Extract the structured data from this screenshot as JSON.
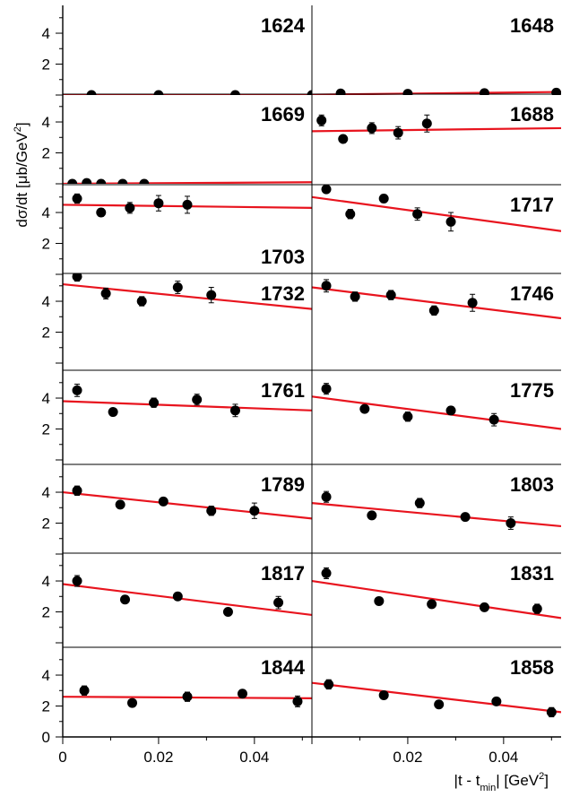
{
  "chart_data": {
    "type": "scatter",
    "layout": "grid 8 rows x 2 columns of small-multiple panels with shared axes",
    "xlabel_parts": {
      "pre": "|t - t",
      "sub": "min",
      "post": "| [GeV",
      "sup": "2",
      "end": "]"
    },
    "ylabel_parts": {
      "pre": "dσ/dt [μb/GeV",
      "sup": "2",
      "end": "]"
    },
    "xlim": [
      0,
      0.052
    ],
    "ylim": [
      0,
      5.8
    ],
    "x_ticks": [
      0,
      0.02,
      0.04
    ],
    "x_tick_labels": [
      "0",
      "0.02",
      "0.04"
    ],
    "y_ticks": [
      0,
      2,
      4
    ],
    "y_tick_labels_bottom": [
      "0",
      "2",
      "4"
    ],
    "y_tick_labels_other": [
      "",
      "2",
      "4"
    ],
    "colors": {
      "fit": "#e8141e",
      "points": "#000000"
    },
    "panels": [
      {
        "label": "1624",
        "points": [
          [
            0.006,
            0.0
          ],
          [
            0.02,
            0.0
          ],
          [
            0.036,
            0.0
          ],
          [
            0.052,
            0.0
          ]
        ],
        "errors": [
          0,
          0,
          0,
          0
        ],
        "fit": [
          0.0,
          0.0
        ]
      },
      {
        "label": "1648",
        "points": [
          [
            0.006,
            0.1
          ],
          [
            0.02,
            0.08
          ],
          [
            0.036,
            0.12
          ],
          [
            0.051,
            0.15
          ]
        ],
        "errors": [
          0,
          0,
          0,
          0
        ],
        "fit": [
          0.02,
          0.2
        ]
      },
      {
        "label": "1669",
        "points": [
          [
            0.002,
            0.0
          ],
          [
            0.005,
            0.05
          ],
          [
            0.008,
            0.0
          ],
          [
            0.0125,
            0.0
          ],
          [
            0.017,
            0.0
          ]
        ],
        "errors": [
          0,
          0,
          0,
          0,
          0
        ],
        "fit": [
          0.0,
          0.1
        ]
      },
      {
        "label": "1688",
        "points": [
          [
            0.002,
            4.1
          ],
          [
            0.0065,
            2.9
          ],
          [
            0.0125,
            3.6
          ],
          [
            0.018,
            3.3
          ],
          [
            0.024,
            3.9
          ]
        ],
        "errors": [
          0.35,
          0.15,
          0.35,
          0.4,
          0.55
        ],
        "fit": [
          3.4,
          3.6
        ]
      },
      {
        "label": "1703",
        "points": [
          [
            0.003,
            4.9
          ],
          [
            0.008,
            4.0
          ],
          [
            0.014,
            4.3
          ],
          [
            0.02,
            4.6
          ],
          [
            0.026,
            4.5
          ]
        ],
        "errors": [
          0.3,
          0.25,
          0.35,
          0.5,
          0.55
        ],
        "fit": [
          4.5,
          4.3
        ]
      },
      {
        "label": "1717",
        "points": [
          [
            0.003,
            5.5
          ],
          [
            0.008,
            3.9
          ],
          [
            0.015,
            4.9
          ],
          [
            0.022,
            3.9
          ],
          [
            0.029,
            3.4
          ]
        ],
        "errors": [
          0.2,
          0.3,
          0.25,
          0.4,
          0.6
        ],
        "fit": [
          5.0,
          2.8
        ]
      },
      {
        "label": "1732",
        "points": [
          [
            0.003,
            5.6
          ],
          [
            0.009,
            4.5
          ],
          [
            0.0165,
            4.0
          ],
          [
            0.024,
            4.9
          ],
          [
            0.031,
            4.4
          ]
        ],
        "errors": [
          0.3,
          0.35,
          0.3,
          0.4,
          0.5
        ],
        "fit": [
          5.1,
          3.5
        ]
      },
      {
        "label": "1746",
        "points": [
          [
            0.003,
            5.0
          ],
          [
            0.009,
            4.3
          ],
          [
            0.0165,
            4.4
          ],
          [
            0.0255,
            3.4
          ],
          [
            0.0335,
            3.9
          ]
        ],
        "errors": [
          0.4,
          0.3,
          0.3,
          0.3,
          0.55
        ],
        "fit": [
          4.9,
          2.9
        ]
      },
      {
        "label": "1761",
        "points": [
          [
            0.003,
            4.5
          ],
          [
            0.0105,
            3.1
          ],
          [
            0.019,
            3.7
          ],
          [
            0.028,
            3.9
          ],
          [
            0.036,
            3.2
          ]
        ],
        "errors": [
          0.4,
          0.15,
          0.3,
          0.35,
          0.4
        ],
        "fit": [
          3.8,
          3.2
        ]
      },
      {
        "label": "1775",
        "points": [
          [
            0.003,
            4.6
          ],
          [
            0.011,
            3.3
          ],
          [
            0.02,
            2.8
          ],
          [
            0.029,
            3.2
          ],
          [
            0.038,
            2.6
          ]
        ],
        "errors": [
          0.35,
          0.2,
          0.3,
          0.25,
          0.4
        ],
        "fit": [
          4.1,
          2.0
        ]
      },
      {
        "label": "1789",
        "points": [
          [
            0.003,
            4.1
          ],
          [
            0.012,
            3.2
          ],
          [
            0.021,
            3.4
          ],
          [
            0.031,
            2.8
          ],
          [
            0.04,
            2.8
          ]
        ],
        "errors": [
          0.3,
          0.15,
          0.2,
          0.3,
          0.5
        ],
        "fit": [
          4.0,
          2.3
        ]
      },
      {
        "label": "1803",
        "points": [
          [
            0.003,
            3.7
          ],
          [
            0.0125,
            2.5
          ],
          [
            0.0225,
            3.3
          ],
          [
            0.032,
            2.4
          ],
          [
            0.0415,
            2.0
          ]
        ],
        "errors": [
          0.35,
          0.15,
          0.3,
          0.2,
          0.4
        ],
        "fit": [
          3.3,
          1.8
        ]
      },
      {
        "label": "1817",
        "points": [
          [
            0.003,
            4.0
          ],
          [
            0.013,
            2.8
          ],
          [
            0.024,
            3.0
          ],
          [
            0.0345,
            2.0
          ],
          [
            0.045,
            2.6
          ]
        ],
        "errors": [
          0.35,
          0.2,
          0.2,
          0.15,
          0.4
        ],
        "fit": [
          3.8,
          1.8
        ]
      },
      {
        "label": "1831",
        "points": [
          [
            0.003,
            4.5
          ],
          [
            0.014,
            2.7
          ],
          [
            0.025,
            2.5
          ],
          [
            0.036,
            2.3
          ],
          [
            0.047,
            2.2
          ]
        ],
        "errors": [
          0.35,
          0.2,
          0.2,
          0.2,
          0.3
        ],
        "fit": [
          4.0,
          1.6
        ]
      },
      {
        "label": "1844",
        "points": [
          [
            0.0045,
            3.0
          ],
          [
            0.0145,
            2.2
          ],
          [
            0.026,
            2.6
          ],
          [
            0.0375,
            2.8
          ],
          [
            0.049,
            2.3
          ]
        ],
        "errors": [
          0.3,
          0.15,
          0.3,
          0.2,
          0.35
        ],
        "fit": [
          2.6,
          2.5
        ]
      },
      {
        "label": "1858",
        "points": [
          [
            0.0035,
            3.4
          ],
          [
            0.015,
            2.7
          ],
          [
            0.0265,
            2.1
          ],
          [
            0.0385,
            2.3
          ],
          [
            0.05,
            1.6
          ]
        ],
        "errors": [
          0.3,
          0.2,
          0.2,
          0.2,
          0.3
        ],
        "fit": [
          3.5,
          1.6
        ]
      }
    ]
  }
}
